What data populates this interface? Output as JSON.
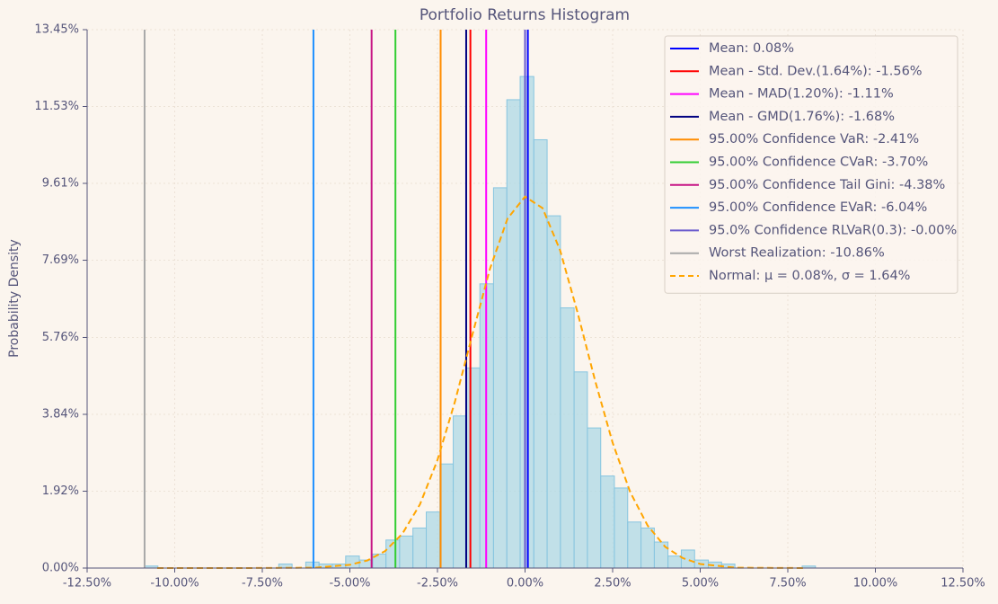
{
  "chart_data": {
    "type": "histogram",
    "title": "Portfolio Returns Histogram",
    "y_label": "Probability Density",
    "bins": [
      -10.86,
      -10.48,
      -10.09,
      -9.71,
      -9.33,
      -8.95,
      -8.56,
      -8.18,
      -7.8,
      -7.41,
      -7.03,
      -6.65,
      -6.26,
      -5.88,
      -5.5,
      -5.12,
      -4.73,
      -4.35,
      -3.97,
      -3.58,
      -3.2,
      -2.82,
      -2.43,
      -2.05,
      -1.67,
      -1.29,
      -0.9,
      -0.52,
      -0.14,
      0.25,
      0.63,
      1.01,
      1.4,
      1.78,
      2.16,
      2.55,
      2.93,
      3.31,
      3.69,
      4.08,
      4.46,
      4.84,
      5.23,
      5.61,
      5.99,
      6.38,
      6.76,
      7.14,
      7.52,
      7.91,
      8.29
    ],
    "values": [
      0.05,
      0,
      0,
      0,
      0,
      0,
      0,
      0,
      0,
      0,
      0.1,
      0,
      0.15,
      0.1,
      0.1,
      0.3,
      0.2,
      0.35,
      0.7,
      0.8,
      1.0,
      1.4,
      2.6,
      3.8,
      5.0,
      7.1,
      9.5,
      11.7,
      12.28,
      10.7,
      8.8,
      6.5,
      4.9,
      3.5,
      2.3,
      2.0,
      1.15,
      1.0,
      0.65,
      0.3,
      0.45,
      0.2,
      0.15,
      0.1,
      0,
      0,
      0,
      0,
      0,
      0.05
    ],
    "color": "#add8e6",
    "vlines": [
      {
        "name": "Mean: 0.08%",
        "color": "#0000ff",
        "x": 0.08
      },
      {
        "name": "Mean - Std. Dev.(1.64%): -1.56%",
        "color": "#ff0000",
        "x": -1.56
      },
      {
        "name": "Mean - MAD(1.20%): -1.11%",
        "color": "#ff00ff",
        "x": -1.11
      },
      {
        "name": "Mean - GMD(1.76%): -1.68%",
        "color": "#000080",
        "x": -1.68
      },
      {
        "name": "95.00% Confidence VaR: -2.41%",
        "color": "#ff8c00",
        "x": -2.41
      },
      {
        "name": "95.00% Confidence CVaR: -3.70%",
        "color": "#32cd32",
        "x": -3.7
      },
      {
        "name": "95.00% Confidence Tail Gini: -4.38%",
        "color": "#c71585",
        "x": -4.38
      },
      {
        "name": "95.00% Confidence EVaR: -6.04%",
        "color": "#1e90ff",
        "x": -6.04
      },
      {
        "name": "95.0% Confidence RLVaR(0.3): -0.00%",
        "color": "#6a5acd",
        "x": 0
      },
      {
        "name": "Worst Realization: -10.86%",
        "color": "#a9a9a9",
        "x": -10.86
      }
    ],
    "normal": {
      "name": "Normal: μ = 0.08%, σ = 1.64%",
      "color": "#ffa500",
      "x": [
        -10.5,
        -8,
        -6,
        -5,
        -4.5,
        -4,
        -3.5,
        -3,
        -2.5,
        -2,
        -1.5,
        -1,
        -0.5,
        0,
        0.5,
        1,
        1.5,
        2,
        2.5,
        3,
        3.5,
        4,
        4.5,
        5,
        6,
        8
      ],
      "values": [
        0,
        0,
        0.01,
        0.08,
        0.19,
        0.42,
        0.86,
        1.59,
        2.7,
        4.16,
        5.84,
        7.48,
        8.73,
        9.28,
        8.99,
        7.94,
        6.38,
        4.68,
        3.13,
        1.9,
        1.06,
        0.53,
        0.25,
        0.1,
        0.01,
        0
      ]
    },
    "xlim": [
      -12.5,
      12.5
    ],
    "xticks": [
      {
        "value": -12.5,
        "label": "-12.50%"
      },
      {
        "value": -10,
        "label": "-10.00%"
      },
      {
        "value": -7.5,
        "label": "-7.50%"
      },
      {
        "value": -5,
        "label": "-5.00%"
      },
      {
        "value": -2.5,
        "label": "-2.50%"
      },
      {
        "value": 0,
        "label": "0.00%"
      },
      {
        "value": 2.5,
        "label": "2.50%"
      },
      {
        "value": 5,
        "label": "5.00%"
      },
      {
        "value": 7.5,
        "label": "7.50%"
      },
      {
        "value": 10,
        "label": "10.00%"
      },
      {
        "value": 12.5,
        "label": "12.50%"
      }
    ],
    "ylim": [
      0,
      13.45
    ],
    "yticks": [
      {
        "value": 0,
        "label": "0.00%"
      },
      {
        "value": 1.92,
        "label": "1.92%"
      },
      {
        "value": 3.84,
        "label": "3.84%"
      },
      {
        "value": 5.76,
        "label": "5.76%"
      },
      {
        "value": 7.69,
        "label": "7.69%"
      },
      {
        "value": 9.61,
        "label": "9.61%"
      },
      {
        "value": 11.53,
        "label": "11.53%"
      },
      {
        "value": 13.45,
        "label": "13.45%"
      }
    ],
    "grid": true
  }
}
